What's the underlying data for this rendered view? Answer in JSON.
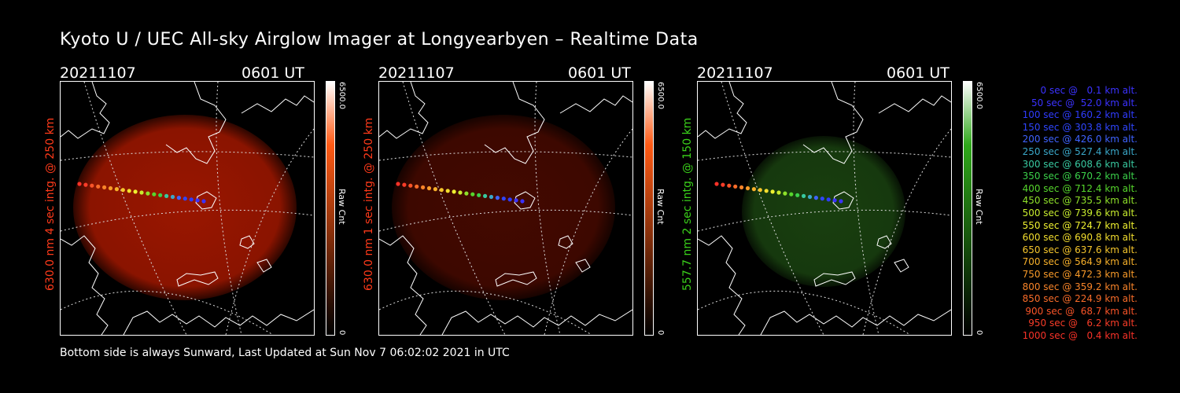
{
  "title": "Kyoto U / UEC All-sky Airglow Imager at Longyearbyen – Realtime Data",
  "footer": "Bottom side is always Sunward, Last Updated at Sun Nov  7 06:02:02 2021 in UTC",
  "panels": [
    {
      "date": "20211107",
      "time": "0601 UT",
      "ylabel": "630.0 nm 4 sec intg. @ 250 km",
      "label_color": "#ff3a1a",
      "cbar_max": "6500.0",
      "cbar_unit": "Raw Cnt",
      "cbar_min": "0",
      "cbar_color": "#ff5a14",
      "glow": "#b51a00",
      "glow_opacity": 0.85
    },
    {
      "date": "20211107",
      "time": "0601 UT",
      "ylabel": "630.0 nm 1 sec intg. @ 250 km",
      "label_color": "#ff3a1a",
      "cbar_max": "6500.0",
      "cbar_unit": "Raw Cnt",
      "cbar_min": "0",
      "cbar_color": "#ff5a14",
      "glow": "#5a0c00",
      "glow_opacity": 0.75
    },
    {
      "date": "20211107",
      "time": "0601 UT",
      "ylabel": "557.7 nm 2 sec intg. @ 150 km",
      "label_color": "#3ad11a",
      "cbar_max": "6500.0",
      "cbar_unit": "Raw Cnt",
      "cbar_min": "0",
      "cbar_color": "#2fa81a",
      "glow": "#1d4a12",
      "glow_opacity": 0.85
    }
  ],
  "legend": [
    {
      "text": "0 sec @   0.1 km alt.",
      "color": "#3b32ff"
    },
    {
      "text": "50 sec @  52.0 km alt.",
      "color": "#3b32ff"
    },
    {
      "text": "100 sec @ 160.2 km alt.",
      "color": "#2f3cff"
    },
    {
      "text": "150 sec @ 303.8 km alt.",
      "color": "#2f46ff"
    },
    {
      "text": "200 sec @ 426.0 km alt.",
      "color": "#3f63ff"
    },
    {
      "text": "250 sec @ 527.4 km alt.",
      "color": "#3aa7c8"
    },
    {
      "text": "300 sec @ 608.6 km alt.",
      "color": "#38c9a0"
    },
    {
      "text": "350 sec @ 670.2 km alt.",
      "color": "#3bd14a"
    },
    {
      "text": "400 sec @ 712.4 km alt.",
      "color": "#56d62c"
    },
    {
      "text": "450 sec @ 735.5 km alt.",
      "color": "#8ee02a"
    },
    {
      "text": "500 sec @ 739.6 km alt.",
      "color": "#c8ec2e"
    },
    {
      "text": "550 sec @ 724.7 km alt.",
      "color": "#eef030"
    },
    {
      "text": "600 sec @ 690.8 km alt.",
      "color": "#f3de2e"
    },
    {
      "text": "650 sec @ 637.6 km alt.",
      "color": "#f6c62c"
    },
    {
      "text": "700 sec @ 564.9 km alt.",
      "color": "#f7b02a"
    },
    {
      "text": "750 sec @ 472.3 km alt.",
      "color": "#f89a29"
    },
    {
      "text": "800 sec @ 359.2 km alt.",
      "color": "#f88429"
    },
    {
      "text": "850 sec @ 224.9 km alt.",
      "color": "#f86c29"
    },
    {
      "text": "900 sec @  68.7 km alt.",
      "color": "#f95428"
    },
    {
      "text": "950 sec @   6.2 km alt.",
      "color": "#f93c28"
    },
    {
      "text": "1000 sec @   0.4 km alt.",
      "color": "#f93228"
    }
  ]
}
